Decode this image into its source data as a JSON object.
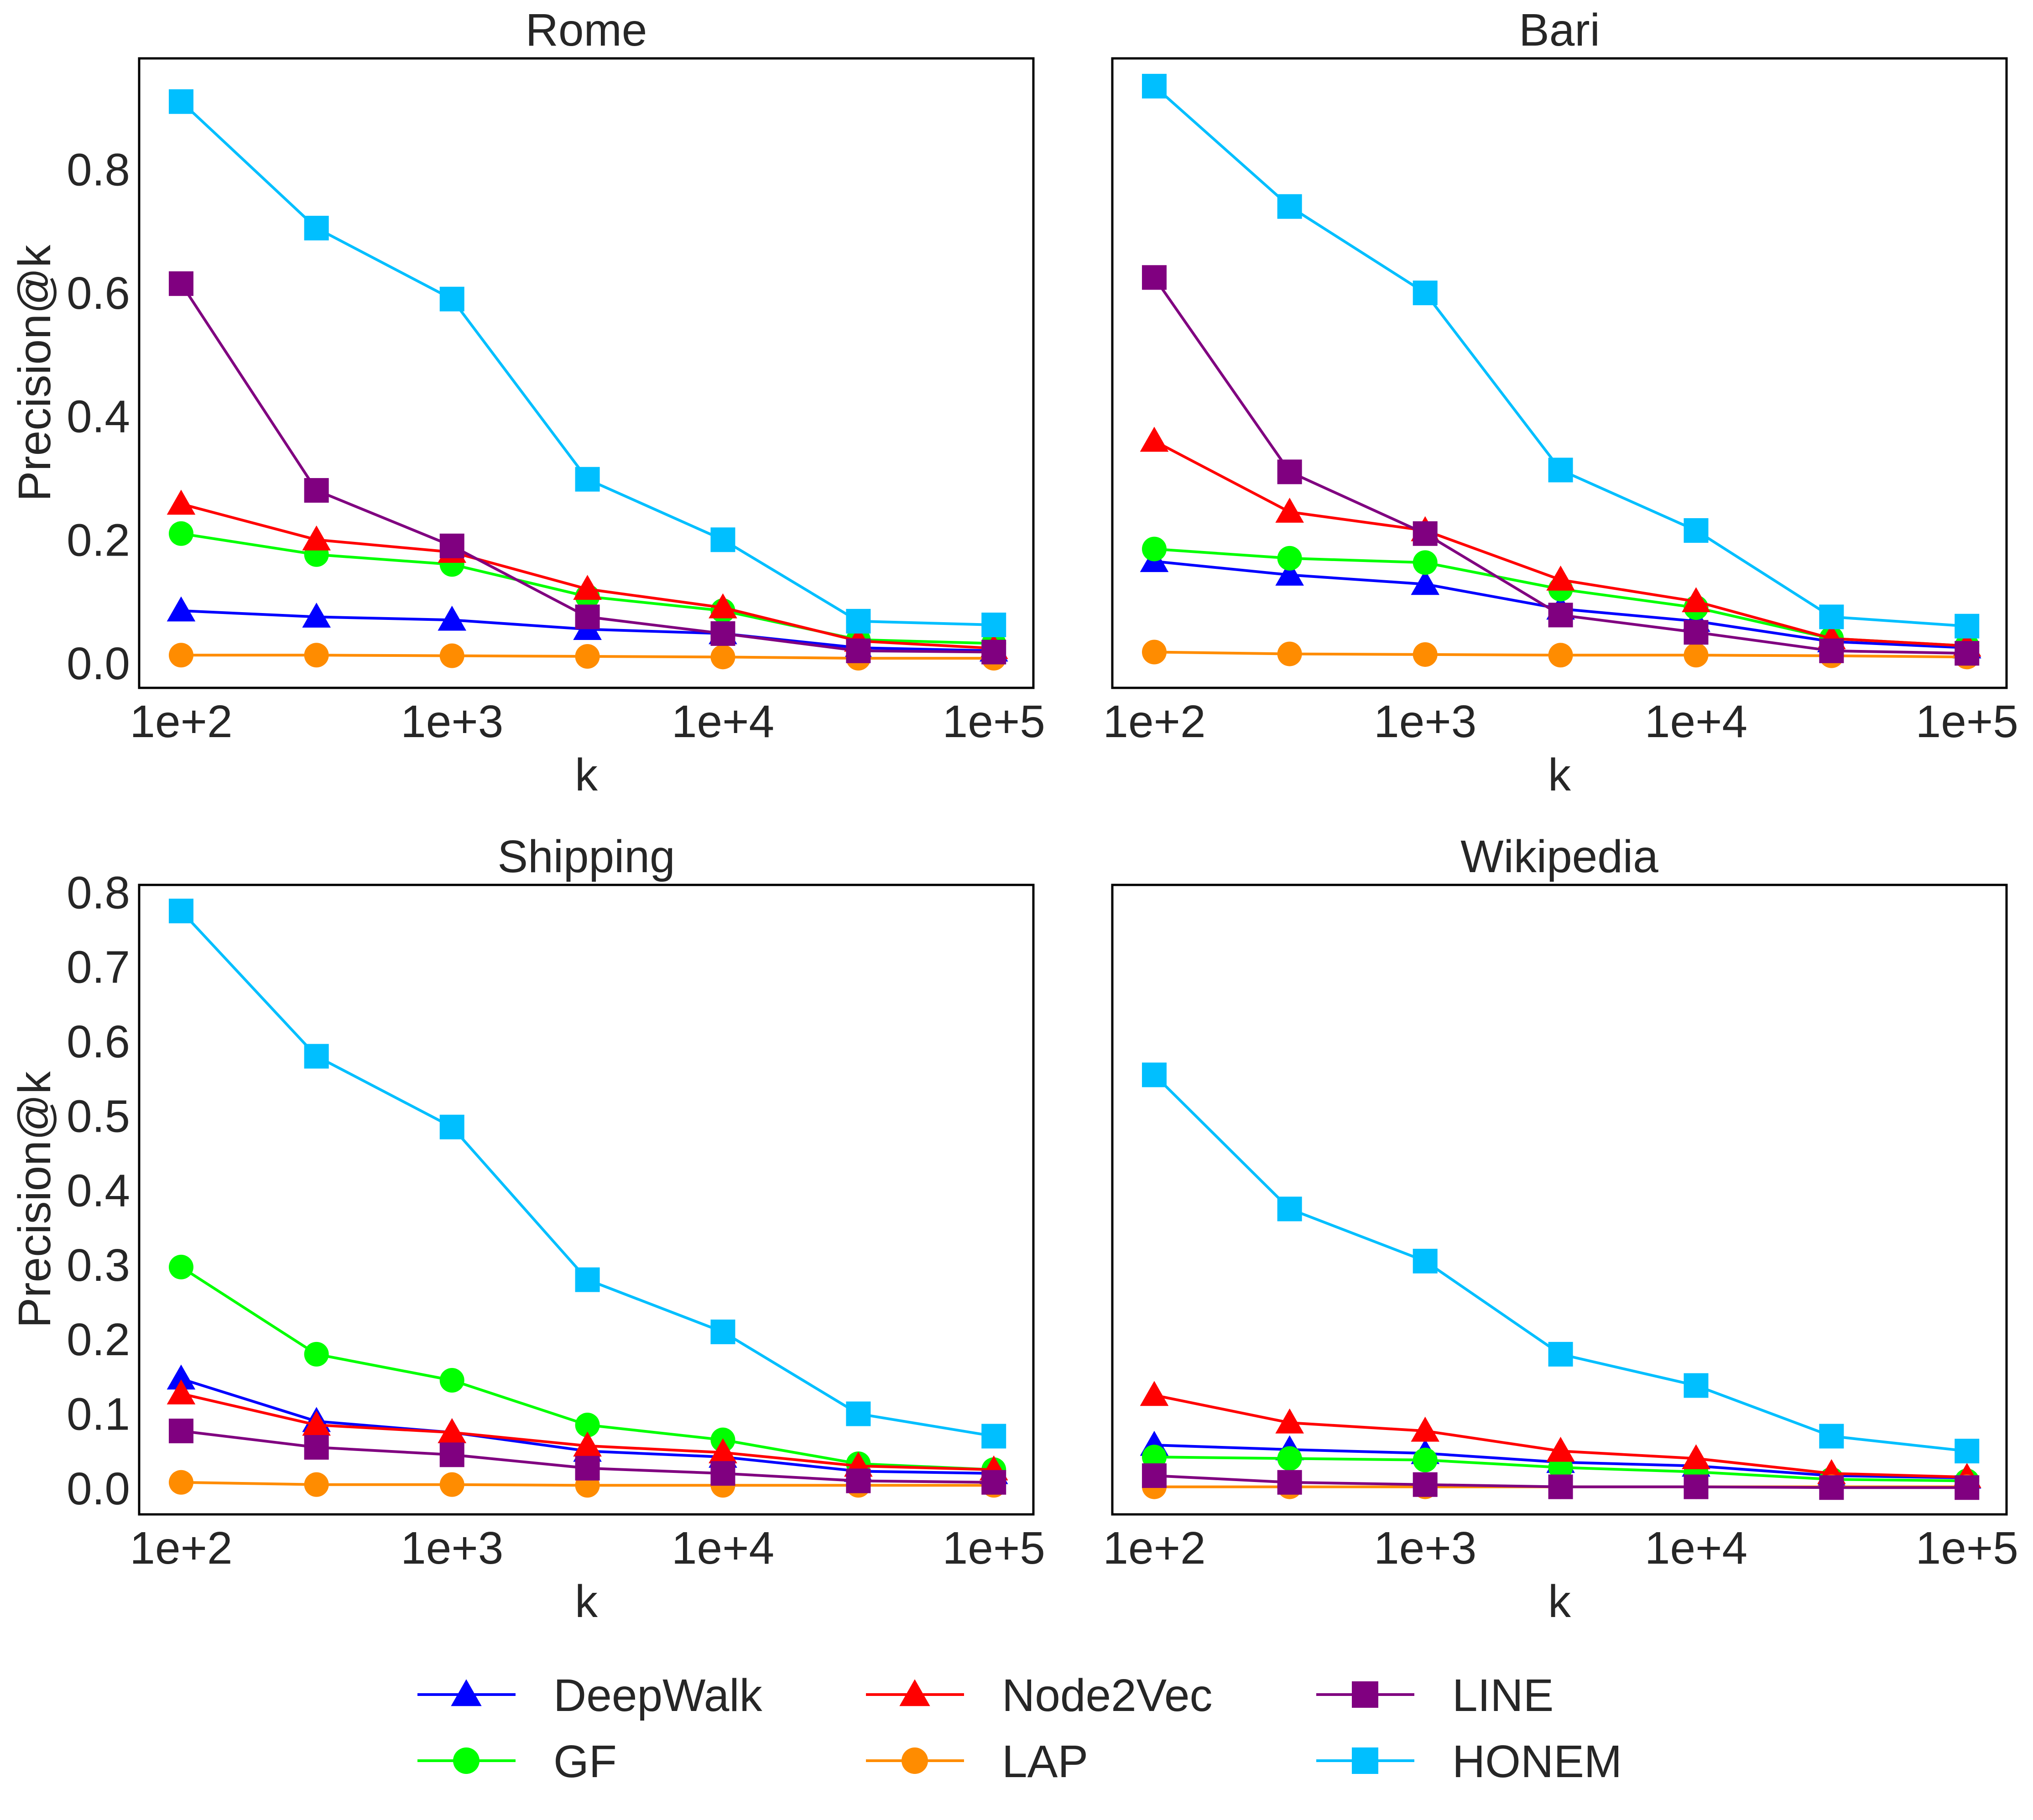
{
  "chart_data": [
    {
      "type": "line",
      "title": "Rome",
      "xlabel": "k",
      "ylabel": "Precision@k",
      "x_scale": "log",
      "xlim": [
        70,
        140000
      ],
      "ylim": [
        -0.04,
        0.98
      ],
      "xticks": [
        100,
        1000,
        10000,
        100000
      ],
      "xtick_labels": [
        "1e+2",
        "1e+3",
        "1e+4",
        "1e+5"
      ],
      "yticks": [
        0.0,
        0.2,
        0.4,
        0.6,
        0.8
      ],
      "ytick_labels": [
        "0.0",
        "0.2",
        "0.4",
        "0.6",
        "0.8"
      ],
      "x": [
        100,
        316,
        1000,
        3162,
        10000,
        31623,
        100000
      ],
      "series": [
        {
          "name": "DeepWalk",
          "values": [
            0.085,
            0.075,
            0.07,
            0.055,
            0.048,
            0.025,
            0.02
          ]
        },
        {
          "name": "GF",
          "values": [
            0.21,
            0.176,
            0.16,
            0.108,
            0.085,
            0.038,
            0.032
          ]
        },
        {
          "name": "Node2Vec",
          "values": [
            0.258,
            0.2,
            0.18,
            0.12,
            0.09,
            0.036,
            0.024
          ]
        },
        {
          "name": "LAP",
          "values": [
            0.013,
            0.013,
            0.012,
            0.011,
            0.01,
            0.008,
            0.008
          ]
        },
        {
          "name": "LINE",
          "values": [
            0.615,
            0.28,
            0.19,
            0.075,
            0.048,
            0.02,
            0.018
          ]
        },
        {
          "name": "HONEM",
          "values": [
            0.91,
            0.705,
            0.59,
            0.298,
            0.2,
            0.068,
            0.062
          ]
        }
      ]
    },
    {
      "type": "line",
      "title": "Bari",
      "xlabel": "k",
      "ylabel": "",
      "x_scale": "log",
      "xlim": [
        70,
        140000
      ],
      "ylim": [
        -0.04,
        0.98
      ],
      "xticks": [
        100,
        1000,
        10000,
        100000
      ],
      "xtick_labels": [
        "1e+2",
        "1e+3",
        "1e+4",
        "1e+5"
      ],
      "yticks": [],
      "ytick_labels": [],
      "x": [
        100,
        316,
        1000,
        3162,
        10000,
        31623,
        100000
      ],
      "series": [
        {
          "name": "DeepWalk",
          "values": [
            0.165,
            0.143,
            0.128,
            0.088,
            0.068,
            0.035,
            0.025
          ]
        },
        {
          "name": "GF",
          "values": [
            0.185,
            0.17,
            0.163,
            0.12,
            0.09,
            0.04,
            0.028
          ]
        },
        {
          "name": "Node2Vec",
          "values": [
            0.36,
            0.245,
            0.215,
            0.135,
            0.1,
            0.04,
            0.028
          ]
        },
        {
          "name": "LAP",
          "values": [
            0.018,
            0.015,
            0.014,
            0.013,
            0.013,
            0.012,
            0.01
          ]
        },
        {
          "name": "LINE",
          "values": [
            0.625,
            0.31,
            0.21,
            0.078,
            0.05,
            0.02,
            0.016
          ]
        },
        {
          "name": "HONEM",
          "values": [
            0.935,
            0.74,
            0.6,
            0.313,
            0.215,
            0.075,
            0.06
          ]
        }
      ]
    },
    {
      "type": "line",
      "title": "Shipping",
      "xlabel": "k",
      "ylabel": "Precision@k",
      "x_scale": "log",
      "xlim": [
        70,
        140000
      ],
      "ylim": [
        -0.035,
        0.81
      ],
      "xticks": [
        100,
        1000,
        10000,
        100000
      ],
      "xtick_labels": [
        "1e+2",
        "1e+3",
        "1e+4",
        "1e+5"
      ],
      "yticks": [
        0.0,
        0.1,
        0.2,
        0.3,
        0.4,
        0.5,
        0.6,
        0.7,
        0.8
      ],
      "ytick_labels": [
        "0.0",
        "0.1",
        "0.2",
        "0.3",
        "0.4",
        "0.5",
        "0.6",
        "0.7",
        "0.8"
      ],
      "x": [
        100,
        316,
        1000,
        3162,
        10000,
        31623,
        100000
      ],
      "series": [
        {
          "name": "DeepWalk",
          "values": [
            0.147,
            0.09,
            0.075,
            0.05,
            0.042,
            0.023,
            0.02
          ]
        },
        {
          "name": "GF",
          "values": [
            0.297,
            0.18,
            0.145,
            0.085,
            0.065,
            0.033,
            0.025
          ]
        },
        {
          "name": "Node2Vec",
          "values": [
            0.127,
            0.085,
            0.075,
            0.057,
            0.048,
            0.03,
            0.025
          ]
        },
        {
          "name": "LAP",
          "values": [
            0.008,
            0.005,
            0.005,
            0.004,
            0.004,
            0.004,
            0.004
          ]
        },
        {
          "name": "LINE",
          "values": [
            0.077,
            0.055,
            0.045,
            0.027,
            0.02,
            0.01,
            0.008
          ]
        },
        {
          "name": "HONEM",
          "values": [
            0.775,
            0.58,
            0.485,
            0.28,
            0.21,
            0.1,
            0.07
          ]
        }
      ]
    },
    {
      "type": "line",
      "title": "Wikipedia",
      "xlabel": "k",
      "ylabel": "",
      "x_scale": "log",
      "xlim": [
        70,
        140000
      ],
      "ylim": [
        -0.035,
        0.81
      ],
      "xticks": [
        100,
        1000,
        10000,
        100000
      ],
      "xtick_labels": [
        "1e+2",
        "1e+3",
        "1e+4",
        "1e+5"
      ],
      "yticks": [],
      "ytick_labels": [],
      "x": [
        100,
        316,
        1000,
        3162,
        10000,
        31623,
        100000
      ],
      "series": [
        {
          "name": "DeepWalk",
          "values": [
            0.058,
            0.052,
            0.047,
            0.035,
            0.03,
            0.017,
            0.014
          ]
        },
        {
          "name": "GF",
          "values": [
            0.042,
            0.04,
            0.038,
            0.028,
            0.022,
            0.012,
            0.01
          ]
        },
        {
          "name": "Node2Vec",
          "values": [
            0.125,
            0.088,
            0.077,
            0.05,
            0.04,
            0.02,
            0.015
          ]
        },
        {
          "name": "LAP",
          "values": [
            0.002,
            0.002,
            0.002,
            0.002,
            0.002,
            0.002,
            0.002
          ]
        },
        {
          "name": "LINE",
          "values": [
            0.017,
            0.008,
            0.005,
            0.002,
            0.002,
            0.001,
            0.001
          ]
        },
        {
          "name": "HONEM",
          "values": [
            0.555,
            0.375,
            0.305,
            0.18,
            0.138,
            0.07,
            0.05
          ]
        }
      ]
    }
  ],
  "series_styles": [
    {
      "name": "DeepWalk",
      "color": "#0000ff",
      "marker": "triangle"
    },
    {
      "name": "GF",
      "color": "#00ff00",
      "marker": "circle"
    },
    {
      "name": "Node2Vec",
      "color": "#ff0000",
      "marker": "triangle"
    },
    {
      "name": "LAP",
      "color": "#ff8c00",
      "marker": "circle"
    },
    {
      "name": "LINE",
      "color": "#800080",
      "marker": "square"
    },
    {
      "name": "HONEM",
      "color": "#00bfff",
      "marker": "square"
    }
  ],
  "legend": {
    "placement": "bottom-center",
    "columns": 3,
    "entries": [
      "DeepWalk",
      "GF",
      "Node2Vec",
      "LAP",
      "LINE",
      "HONEM"
    ]
  }
}
